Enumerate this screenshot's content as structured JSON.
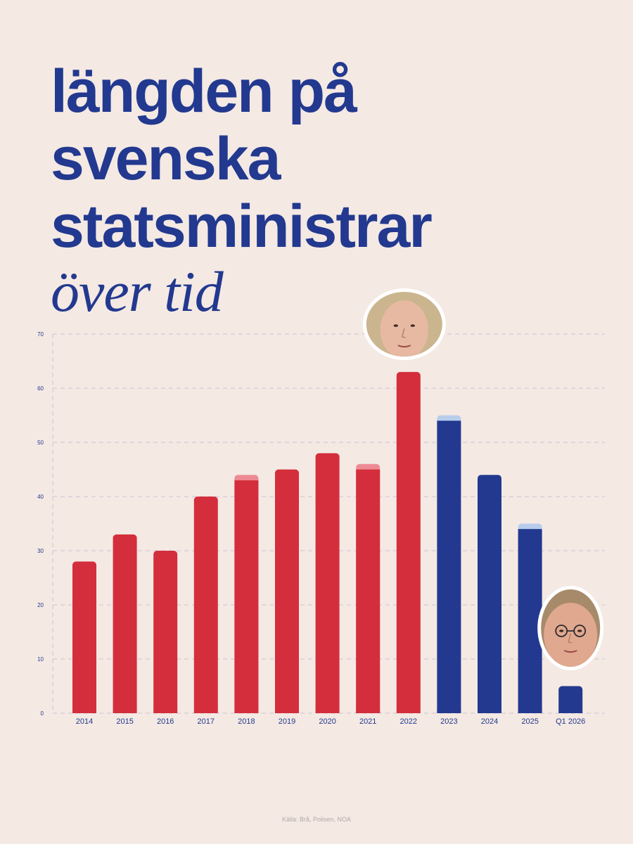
{
  "title": {
    "line1": "längden på",
    "line2": "svenska",
    "line3": "statsministrar",
    "line4": "över tid"
  },
  "source": "Källa: Brå, Polisen, NOA",
  "colors": {
    "background": "#f4e9e3",
    "title": "#22398f",
    "red": "#d42e3c",
    "red_light": "#ee8a94",
    "blue": "#22398f",
    "blue_light": "#b7cdeb",
    "grid": "#cfc2d6",
    "axis_text": "#22398f"
  },
  "icons": {
    "portrait_2022": "woman-portrait-photo",
    "portrait_q1_2026": "man-with-glasses-portrait-photo"
  },
  "chart_data": {
    "type": "bar",
    "title": "längden på svenska statsministrar över tid",
    "categories": [
      "2014",
      "2015",
      "2016",
      "2017",
      "2018",
      "2019",
      "2020",
      "2021",
      "2022",
      "2023",
      "2024",
      "2025",
      "Q1 2026"
    ],
    "values": [
      28,
      33,
      30,
      40,
      43,
      45,
      48,
      45,
      63,
      54,
      44,
      34,
      5
    ],
    "caps": [
      0,
      0,
      0,
      0,
      1,
      0,
      0,
      1,
      0,
      1,
      0,
      1,
      0
    ],
    "bar_colors": [
      "red",
      "red",
      "red",
      "red",
      "red",
      "red",
      "red",
      "red",
      "red",
      "blue",
      "blue",
      "blue",
      "blue"
    ],
    "ylim": [
      0,
      70
    ],
    "yticks": [
      0,
      10,
      20,
      30,
      40,
      50,
      60,
      70
    ],
    "xlabel": "",
    "ylabel": "",
    "grid": true
  }
}
